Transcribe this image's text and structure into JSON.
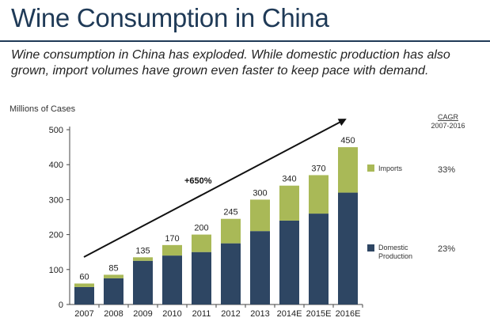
{
  "header": {
    "title": "Wine Consumption in China",
    "subtitle": "Wine consumption in China has exploded. While domestic production has also grown, import volumes have grown even faster to keep pace with demand."
  },
  "colors": {
    "domestic": "#2e4663",
    "imports": "#a9b957",
    "title": "#1f3a57"
  },
  "chart_data": {
    "type": "bar",
    "stacked": true,
    "ylabel": "Millions of Cases",
    "ylim": [
      0,
      500
    ],
    "yticks": [
      0,
      100,
      200,
      300,
      400,
      500
    ],
    "grid": false,
    "categories": [
      "2007",
      "2008",
      "2009",
      "2010",
      "2011",
      "2012",
      "2013",
      "2014E",
      "2015E",
      "2016E"
    ],
    "series": [
      {
        "name": "Domestic Production",
        "values": [
          50,
          75,
          125,
          140,
          150,
          175,
          210,
          240,
          260,
          320
        ]
      },
      {
        "name": "Imports",
        "values": [
          10,
          10,
          10,
          30,
          50,
          70,
          90,
          100,
          110,
          130
        ]
      }
    ],
    "totals": [
      60,
      85,
      135,
      170,
      200,
      245,
      300,
      340,
      370,
      450
    ],
    "annotation": "+650%",
    "legend": {
      "placement": "right",
      "cagr_header": "CAGR",
      "cagr_period": "2007-2016",
      "items": [
        {
          "label": "Imports",
          "cagr": "33%"
        },
        {
          "label": "Domestic Production",
          "cagr": "23%"
        }
      ]
    }
  }
}
